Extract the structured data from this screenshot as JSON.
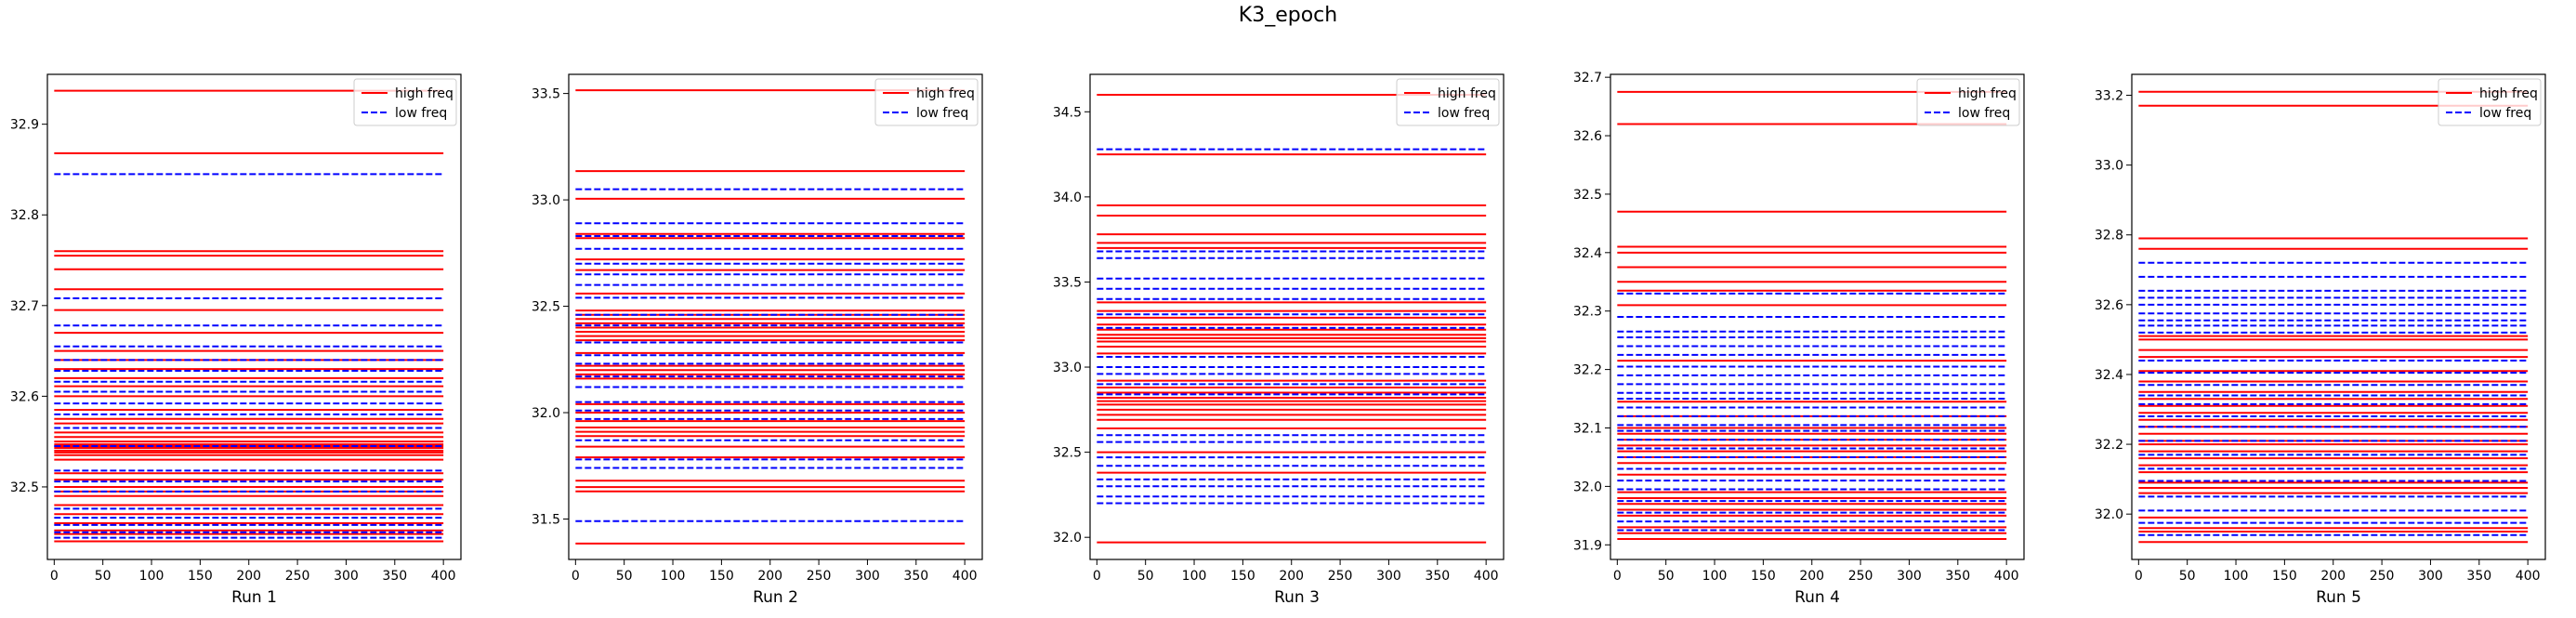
{
  "figure": {
    "title": "K3_epoch"
  },
  "legend": {
    "high": {
      "label": "high freq",
      "color": "#ff0000",
      "dash": "solid"
    },
    "low": {
      "label": "low freq",
      "color": "#0000ff",
      "dash": "dashed"
    }
  },
  "chart_data": [
    {
      "type": "line",
      "xlabel": "Run 1",
      "xlim": [
        -7,
        418
      ],
      "ylim": [
        32.42,
        32.955
      ],
      "x_range": [
        0,
        400
      ],
      "xticks": [
        0,
        50,
        100,
        150,
        200,
        250,
        300,
        350,
        400
      ],
      "yticks": [
        32.5,
        32.6,
        32.7,
        32.8,
        32.9
      ],
      "ytick_labels": [
        "32.5",
        "32.6",
        "32.7",
        "32.8",
        "32.9"
      ],
      "legend_position": "top-right",
      "high_freq": [
        32.937,
        32.868,
        32.76,
        32.755,
        32.74,
        32.718,
        32.695,
        32.67,
        32.65,
        32.64,
        32.63,
        32.62,
        32.611,
        32.6,
        32.585,
        32.575,
        32.57,
        32.56,
        32.555,
        32.55,
        32.547,
        32.545,
        32.543,
        32.54,
        32.538,
        32.535,
        32.53,
        32.515,
        32.508,
        32.5,
        32.495,
        32.49,
        32.48,
        32.47,
        32.46,
        32.452,
        32.448,
        32.44
      ],
      "low_freq": [
        32.845,
        32.708,
        32.678,
        32.655,
        32.64,
        32.628,
        32.616,
        32.605,
        32.592,
        32.58,
        32.565,
        32.545,
        32.518,
        32.506,
        32.495,
        32.476,
        32.466,
        32.458,
        32.45,
        32.444
      ]
    },
    {
      "type": "line",
      "xlabel": "Run 2",
      "xlim": [
        -7,
        418
      ],
      "ylim": [
        31.31,
        33.59
      ],
      "x_range": [
        0,
        400
      ],
      "xticks": [
        0,
        50,
        100,
        150,
        200,
        250,
        300,
        350,
        400
      ],
      "yticks": [
        31.5,
        32.0,
        32.5,
        33.0,
        33.5
      ],
      "ytick_labels": [
        "31.5",
        "32.0",
        "32.5",
        "33.0",
        "33.5"
      ],
      "legend_position": "top-right",
      "high_freq": [
        33.515,
        33.135,
        33.005,
        32.84,
        32.82,
        32.72,
        32.67,
        32.56,
        32.48,
        32.46,
        32.44,
        32.42,
        32.4,
        32.38,
        32.36,
        32.34,
        32.28,
        32.22,
        32.2,
        32.18,
        32.16,
        32.04,
        32.0,
        31.96,
        31.93,
        31.91,
        31.89,
        31.84,
        31.79,
        31.68,
        31.65,
        31.63,
        31.385
      ],
      "low_freq": [
        33.05,
        32.89,
        32.83,
        32.77,
        32.7,
        32.65,
        32.6,
        32.54,
        32.46,
        32.41,
        32.33,
        32.27,
        32.23,
        32.17,
        32.12,
        32.05,
        32.01,
        31.97,
        31.87,
        31.78,
        31.74,
        31.49
      ]
    },
    {
      "type": "line",
      "xlabel": "Run 3",
      "xlim": [
        -7,
        418
      ],
      "ylim": [
        31.87,
        34.72
      ],
      "x_range": [
        0,
        400
      ],
      "xticks": [
        0,
        50,
        100,
        150,
        200,
        250,
        300,
        350,
        400
      ],
      "yticks": [
        32.0,
        32.5,
        33.0,
        33.5,
        34.0,
        34.5
      ],
      "ytick_labels": [
        "32.0",
        "32.5",
        "33.0",
        "33.5",
        "34.0",
        "34.5"
      ],
      "legend_position": "top-right",
      "high_freq": [
        34.6,
        34.25,
        33.95,
        33.89,
        33.78,
        33.73,
        33.7,
        33.38,
        33.33,
        33.29,
        33.25,
        33.22,
        33.19,
        33.17,
        33.15,
        33.12,
        33.08,
        32.92,
        32.88,
        32.85,
        32.82,
        32.8,
        32.78,
        32.75,
        32.72,
        32.69,
        32.64,
        32.5,
        32.38,
        31.97
      ],
      "low_freq": [
        34.28,
        33.68,
        33.64,
        33.52,
        33.46,
        33.4,
        33.31,
        33.23,
        33.06,
        33.0,
        32.96,
        32.9,
        32.84,
        32.6,
        32.56,
        32.47,
        32.42,
        32.34,
        32.3,
        32.24,
        32.2
      ]
    },
    {
      "type": "line",
      "xlabel": "Run 4",
      "xlim": [
        -7,
        418
      ],
      "ylim": [
        31.875,
        32.705
      ],
      "x_range": [
        0,
        400
      ],
      "xticks": [
        0,
        50,
        100,
        150,
        200,
        250,
        300,
        350,
        400
      ],
      "yticks": [
        31.9,
        32.0,
        32.1,
        32.2,
        32.3,
        32.4,
        32.5,
        32.6,
        32.7
      ],
      "ytick_labels": [
        "31.9",
        "32.0",
        "32.1",
        "32.2",
        "32.3",
        "32.4",
        "32.5",
        "32.6",
        "32.7"
      ],
      "legend_position": "top-right",
      "high_freq": [
        32.675,
        32.62,
        32.47,
        32.41,
        32.4,
        32.375,
        32.35,
        32.335,
        32.31,
        32.215,
        32.145,
        32.12,
        32.1,
        32.09,
        32.08,
        32.07,
        32.06,
        32.05,
        32.04,
        32.02,
        31.99,
        31.98,
        31.97,
        31.96,
        31.95,
        31.93,
        31.92,
        31.91
      ],
      "low_freq": [
        32.33,
        32.29,
        32.265,
        32.255,
        32.24,
        32.225,
        32.205,
        32.19,
        32.175,
        32.16,
        32.15,
        32.135,
        32.12,
        32.105,
        32.095,
        32.08,
        32.065,
        32.05,
        32.03,
        32.01,
        31.995,
        31.975,
        31.955,
        31.94,
        31.925
      ]
    },
    {
      "type": "line",
      "xlabel": "Run 5",
      "xlim": [
        -7,
        418
      ],
      "ylim": [
        31.87,
        33.26
      ],
      "x_range": [
        0,
        400
      ],
      "xticks": [
        0,
        50,
        100,
        150,
        200,
        250,
        300,
        350,
        400
      ],
      "yticks": [
        32.0,
        32.2,
        32.4,
        32.6,
        32.8,
        33.0,
        33.2
      ],
      "ytick_labels": [
        "32.0",
        "32.2",
        "32.4",
        "32.6",
        "32.8",
        "33.0",
        "33.2"
      ],
      "legend_position": "top-right",
      "high_freq": [
        33.21,
        33.17,
        32.79,
        32.76,
        32.51,
        32.5,
        32.47,
        32.45,
        32.41,
        32.38,
        32.35,
        32.33,
        32.31,
        32.29,
        32.27,
        32.25,
        32.23,
        32.21,
        32.2,
        32.18,
        32.16,
        32.14,
        32.12,
        32.09,
        32.075,
        32.06,
        31.99,
        31.96,
        31.95,
        31.92
      ],
      "low_freq": [
        32.72,
        32.68,
        32.64,
        32.62,
        32.6,
        32.575,
        32.555,
        32.54,
        32.52,
        32.44,
        32.405,
        32.37,
        32.34,
        32.315,
        32.28,
        32.25,
        32.21,
        32.17,
        32.13,
        32.095,
        32.05,
        32.01,
        31.975,
        31.94
      ]
    }
  ]
}
